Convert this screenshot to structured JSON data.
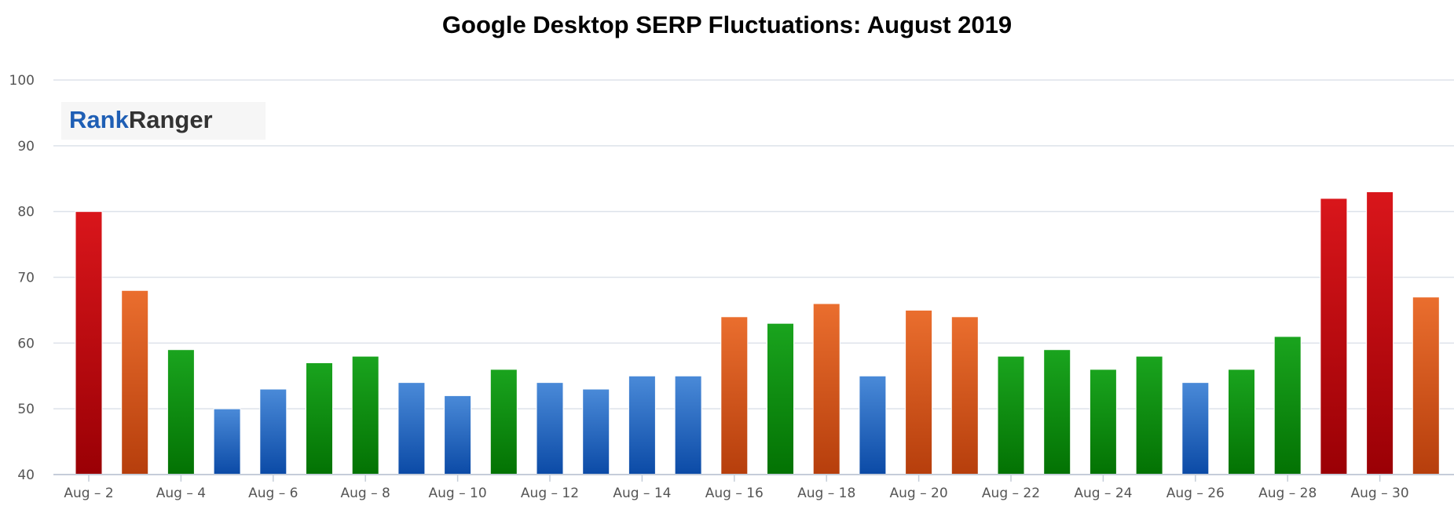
{
  "chart_data": {
    "type": "bar",
    "title": "Google Desktop SERP Fluctuations: August 2019",
    "logo": {
      "part1": "Rank",
      "part2": "Ranger"
    },
    "ylim": [
      40,
      100
    ],
    "yticks": [
      40,
      50,
      60,
      70,
      80,
      90,
      100
    ],
    "grid": true,
    "categories": [
      "Aug – 2",
      "Aug – 3",
      "Aug – 4",
      "Aug – 5",
      "Aug – 6",
      "Aug – 7",
      "Aug – 8",
      "Aug – 9",
      "Aug – 10",
      "Aug – 11",
      "Aug – 12",
      "Aug – 13",
      "Aug – 14",
      "Aug – 15",
      "Aug – 16",
      "Aug – 17",
      "Aug – 18",
      "Aug – 19",
      "Aug – 20",
      "Aug – 21",
      "Aug – 22",
      "Aug – 23",
      "Aug – 24",
      "Aug – 25",
      "Aug – 26",
      "Aug – 27",
      "Aug – 28",
      "Aug – 29",
      "Aug – 30",
      "Aug – 31"
    ],
    "xtick_labels": [
      "Aug – 2",
      "Aug – 4",
      "Aug – 6",
      "Aug – 8",
      "Aug – 10",
      "Aug – 12",
      "Aug – 14",
      "Aug – 16",
      "Aug – 18",
      "Aug – 20",
      "Aug – 22",
      "Aug – 24",
      "Aug – 26",
      "Aug – 28",
      "Aug – 30"
    ],
    "values": [
      80,
      68,
      59,
      50,
      53,
      57,
      58,
      54,
      52,
      56,
      54,
      53,
      55,
      55,
      64,
      63,
      66,
      55,
      65,
      64,
      58,
      59,
      56,
      58,
      54,
      56,
      61,
      82,
      83,
      67
    ],
    "bar_colors": [
      "red",
      "orange",
      "green",
      "blue",
      "blue",
      "green",
      "green",
      "blue",
      "blue",
      "green",
      "blue",
      "blue",
      "blue",
      "blue",
      "orange",
      "green",
      "orange",
      "blue",
      "orange",
      "orange",
      "green",
      "green",
      "green",
      "green",
      "blue",
      "green",
      "green",
      "red",
      "red",
      "orange"
    ],
    "colors": {
      "red": [
        "#d9161b",
        "#9a0005"
      ],
      "orange": [
        "#ea6e2e",
        "#b63e0c"
      ],
      "green": [
        "#1aa41e",
        "#037203"
      ],
      "blue": [
        "#4a8ad8",
        "#0b4aa6"
      ]
    },
    "gridline_color": "#dde2ea",
    "axis_color": "#c5cdd9",
    "logo_colors": {
      "part1": "#1f5fb5",
      "part2": "#333333"
    }
  }
}
